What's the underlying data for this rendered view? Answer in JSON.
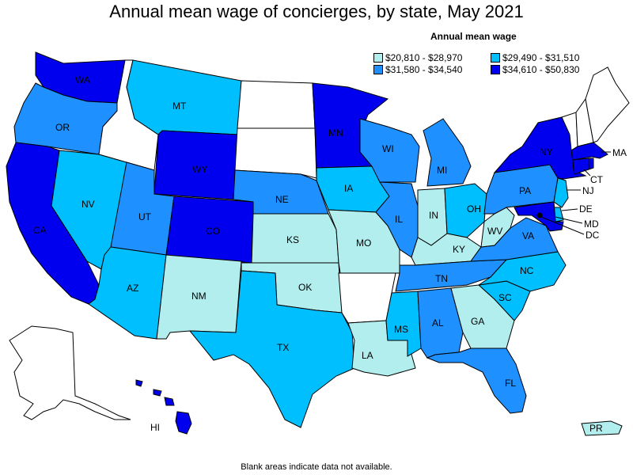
{
  "title": "Annual mean wage of concierges, by state, May 2021",
  "legend": {
    "title": "Annual mean wage",
    "items": [
      {
        "label": "$20,810 - $28,970",
        "color": "#b2eeee"
      },
      {
        "label": "$29,490 - $31,510",
        "color": "#00bfff"
      },
      {
        "label": "$31,580 - $34,540",
        "color": "#1e90ff"
      },
      {
        "label": "$34,610 - $50,830",
        "color": "#0000ee"
      }
    ]
  },
  "footnote": "Blank areas indicate data not available.",
  "states": {
    "WA": {
      "label": "WA",
      "color": "#0000ee"
    },
    "OR": {
      "label": "OR",
      "color": "#1e90ff"
    },
    "CA": {
      "label": "CA",
      "color": "#0000ee"
    },
    "NV": {
      "label": "NV",
      "color": "#00bfff"
    },
    "ID": {
      "label": "",
      "color": "#ffffff"
    },
    "MT": {
      "label": "MT",
      "color": "#00bfff"
    },
    "WY": {
      "label": "WY",
      "color": "#0000ee"
    },
    "UT": {
      "label": "UT",
      "color": "#1e90ff"
    },
    "AZ": {
      "label": "AZ",
      "color": "#00bfff"
    },
    "CO": {
      "label": "CO",
      "color": "#0000ee"
    },
    "NM": {
      "label": "NM",
      "color": "#b2eeee"
    },
    "ND": {
      "label": "",
      "color": "#ffffff"
    },
    "SD": {
      "label": "",
      "color": "#ffffff"
    },
    "NE": {
      "label": "NE",
      "color": "#1e90ff"
    },
    "KS": {
      "label": "KS",
      "color": "#b2eeee"
    },
    "OK": {
      "label": "OK",
      "color": "#b2eeee"
    },
    "TX": {
      "label": "TX",
      "color": "#00bfff"
    },
    "MN": {
      "label": "MN",
      "color": "#0000ee"
    },
    "IA": {
      "label": "IA",
      "color": "#00bfff"
    },
    "MO": {
      "label": "MO",
      "color": "#b2eeee"
    },
    "AR": {
      "label": "",
      "color": "#ffffff"
    },
    "LA": {
      "label": "LA",
      "color": "#b2eeee"
    },
    "WI": {
      "label": "WI",
      "color": "#1e90ff"
    },
    "IL": {
      "label": "IL",
      "color": "#1e90ff"
    },
    "MI": {
      "label": "MI",
      "color": "#1e90ff"
    },
    "IN": {
      "label": "IN",
      "color": "#b2eeee"
    },
    "OH": {
      "label": "OH",
      "color": "#00bfff"
    },
    "KY": {
      "label": "KY",
      "color": "#b2eeee"
    },
    "TN": {
      "label": "TN",
      "color": "#1e90ff"
    },
    "MS": {
      "label": "MS",
      "color": "#00bfff"
    },
    "AL": {
      "label": "AL",
      "color": "#1e90ff"
    },
    "GA": {
      "label": "GA",
      "color": "#b2eeee"
    },
    "FL": {
      "label": "FL",
      "color": "#1e90ff"
    },
    "SC": {
      "label": "SC",
      "color": "#00bfff"
    },
    "NC": {
      "label": "NC",
      "color": "#00bfff"
    },
    "VA": {
      "label": "VA",
      "color": "#1e90ff"
    },
    "WV": {
      "label": "WV",
      "color": "#b2eeee"
    },
    "PA": {
      "label": "PA",
      "color": "#1e90ff"
    },
    "NY": {
      "label": "NY",
      "color": "#0000ee"
    },
    "NJ": {
      "label": "NJ",
      "color": "#00bfff"
    },
    "DE": {
      "label": "DE",
      "color": "#00bfff"
    },
    "MD": {
      "label": "MD",
      "color": "#0000ee"
    },
    "DC": {
      "label": "DC",
      "color": "#000000"
    },
    "CT": {
      "label": "CT",
      "color": "#0000ee"
    },
    "RI": {
      "label": "",
      "color": "#0000ee"
    },
    "MA": {
      "label": "MA",
      "color": "#0000ee"
    },
    "VT": {
      "label": "",
      "color": "#ffffff"
    },
    "NH": {
      "label": "",
      "color": "#ffffff"
    },
    "ME": {
      "label": "",
      "color": "#ffffff"
    },
    "AK": {
      "label": "",
      "color": "#ffffff"
    },
    "HI": {
      "label": "HI",
      "color": "#0000ee"
    },
    "PR": {
      "label": "PR",
      "color": "#b2eeee"
    }
  }
}
